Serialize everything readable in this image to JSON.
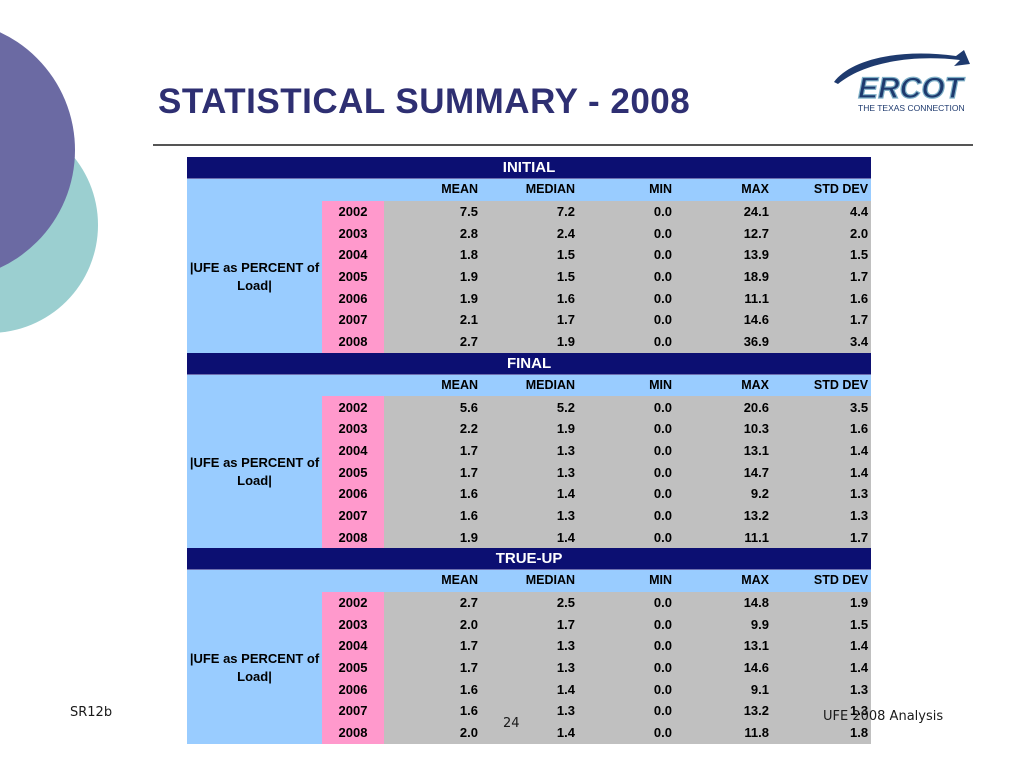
{
  "slide": {
    "title": "STATISTICAL SUMMARY - 2008",
    "footer_left": "SR12b",
    "page_number": "24",
    "footer_right": "UFE 2008 Analysis"
  },
  "logo": {
    "name": "ERCOT",
    "tagline": "THE TEXAS CONNECTION"
  },
  "colors": {
    "title": "#2e2f72",
    "section_header_bg": "#0c0f72",
    "label_bg": "#99ccff",
    "year_bg": "#ff99cc",
    "value_bg": "#c0c0c0",
    "deco_purple": "#6b6aa3",
    "deco_teal": "#9bcfd0"
  },
  "table": {
    "columns": [
      "MEAN",
      "MEDIAN",
      "MIN",
      "MAX",
      "STD DEV"
    ],
    "sections": [
      {
        "name": "INITIAL",
        "row_label": "|UFE as PERCENT of Load|",
        "rows": [
          {
            "year": "2002",
            "values": [
              "7.5",
              "7.2",
              "0.0",
              "24.1",
              "4.4"
            ]
          },
          {
            "year": "2003",
            "values": [
              "2.8",
              "2.4",
              "0.0",
              "12.7",
              "2.0"
            ]
          },
          {
            "year": "2004",
            "values": [
              "1.8",
              "1.5",
              "0.0",
              "13.9",
              "1.5"
            ]
          },
          {
            "year": "2005",
            "values": [
              "1.9",
              "1.5",
              "0.0",
              "18.9",
              "1.7"
            ]
          },
          {
            "year": "2006",
            "values": [
              "1.9",
              "1.6",
              "0.0",
              "11.1",
              "1.6"
            ]
          },
          {
            "year": "2007",
            "values": [
              "2.1",
              "1.7",
              "0.0",
              "14.6",
              "1.7"
            ]
          },
          {
            "year": "2008",
            "values": [
              "2.7",
              "1.9",
              "0.0",
              "36.9",
              "3.4"
            ]
          }
        ]
      },
      {
        "name": "FINAL",
        "row_label": "|UFE as PERCENT of Load|",
        "rows": [
          {
            "year": "2002",
            "values": [
              "5.6",
              "5.2",
              "0.0",
              "20.6",
              "3.5"
            ]
          },
          {
            "year": "2003",
            "values": [
              "2.2",
              "1.9",
              "0.0",
              "10.3",
              "1.6"
            ]
          },
          {
            "year": "2004",
            "values": [
              "1.7",
              "1.3",
              "0.0",
              "13.1",
              "1.4"
            ]
          },
          {
            "year": "2005",
            "values": [
              "1.7",
              "1.3",
              "0.0",
              "14.7",
              "1.4"
            ]
          },
          {
            "year": "2006",
            "values": [
              "1.6",
              "1.4",
              "0.0",
              "9.2",
              "1.3"
            ]
          },
          {
            "year": "2007",
            "values": [
              "1.6",
              "1.3",
              "0.0",
              "13.2",
              "1.3"
            ]
          },
          {
            "year": "2008",
            "values": [
              "1.9",
              "1.4",
              "0.0",
              "11.1",
              "1.7"
            ]
          }
        ]
      },
      {
        "name": "TRUE-UP",
        "row_label": "|UFE as PERCENT of Load|",
        "rows": [
          {
            "year": "2002",
            "values": [
              "2.7",
              "2.5",
              "0.0",
              "14.8",
              "1.9"
            ]
          },
          {
            "year": "2003",
            "values": [
              "2.0",
              "1.7",
              "0.0",
              "9.9",
              "1.5"
            ]
          },
          {
            "year": "2004",
            "values": [
              "1.7",
              "1.3",
              "0.0",
              "13.1",
              "1.4"
            ]
          },
          {
            "year": "2005",
            "values": [
              "1.7",
              "1.3",
              "0.0",
              "14.6",
              "1.4"
            ]
          },
          {
            "year": "2006",
            "values": [
              "1.6",
              "1.4",
              "0.0",
              "9.1",
              "1.3"
            ]
          },
          {
            "year": "2007",
            "values": [
              "1.6",
              "1.3",
              "0.0",
              "13.2",
              "1.3"
            ]
          },
          {
            "year": "2008",
            "values": [
              "2.0",
              "1.4",
              "0.0",
              "11.8",
              "1.8"
            ]
          }
        ]
      }
    ]
  }
}
